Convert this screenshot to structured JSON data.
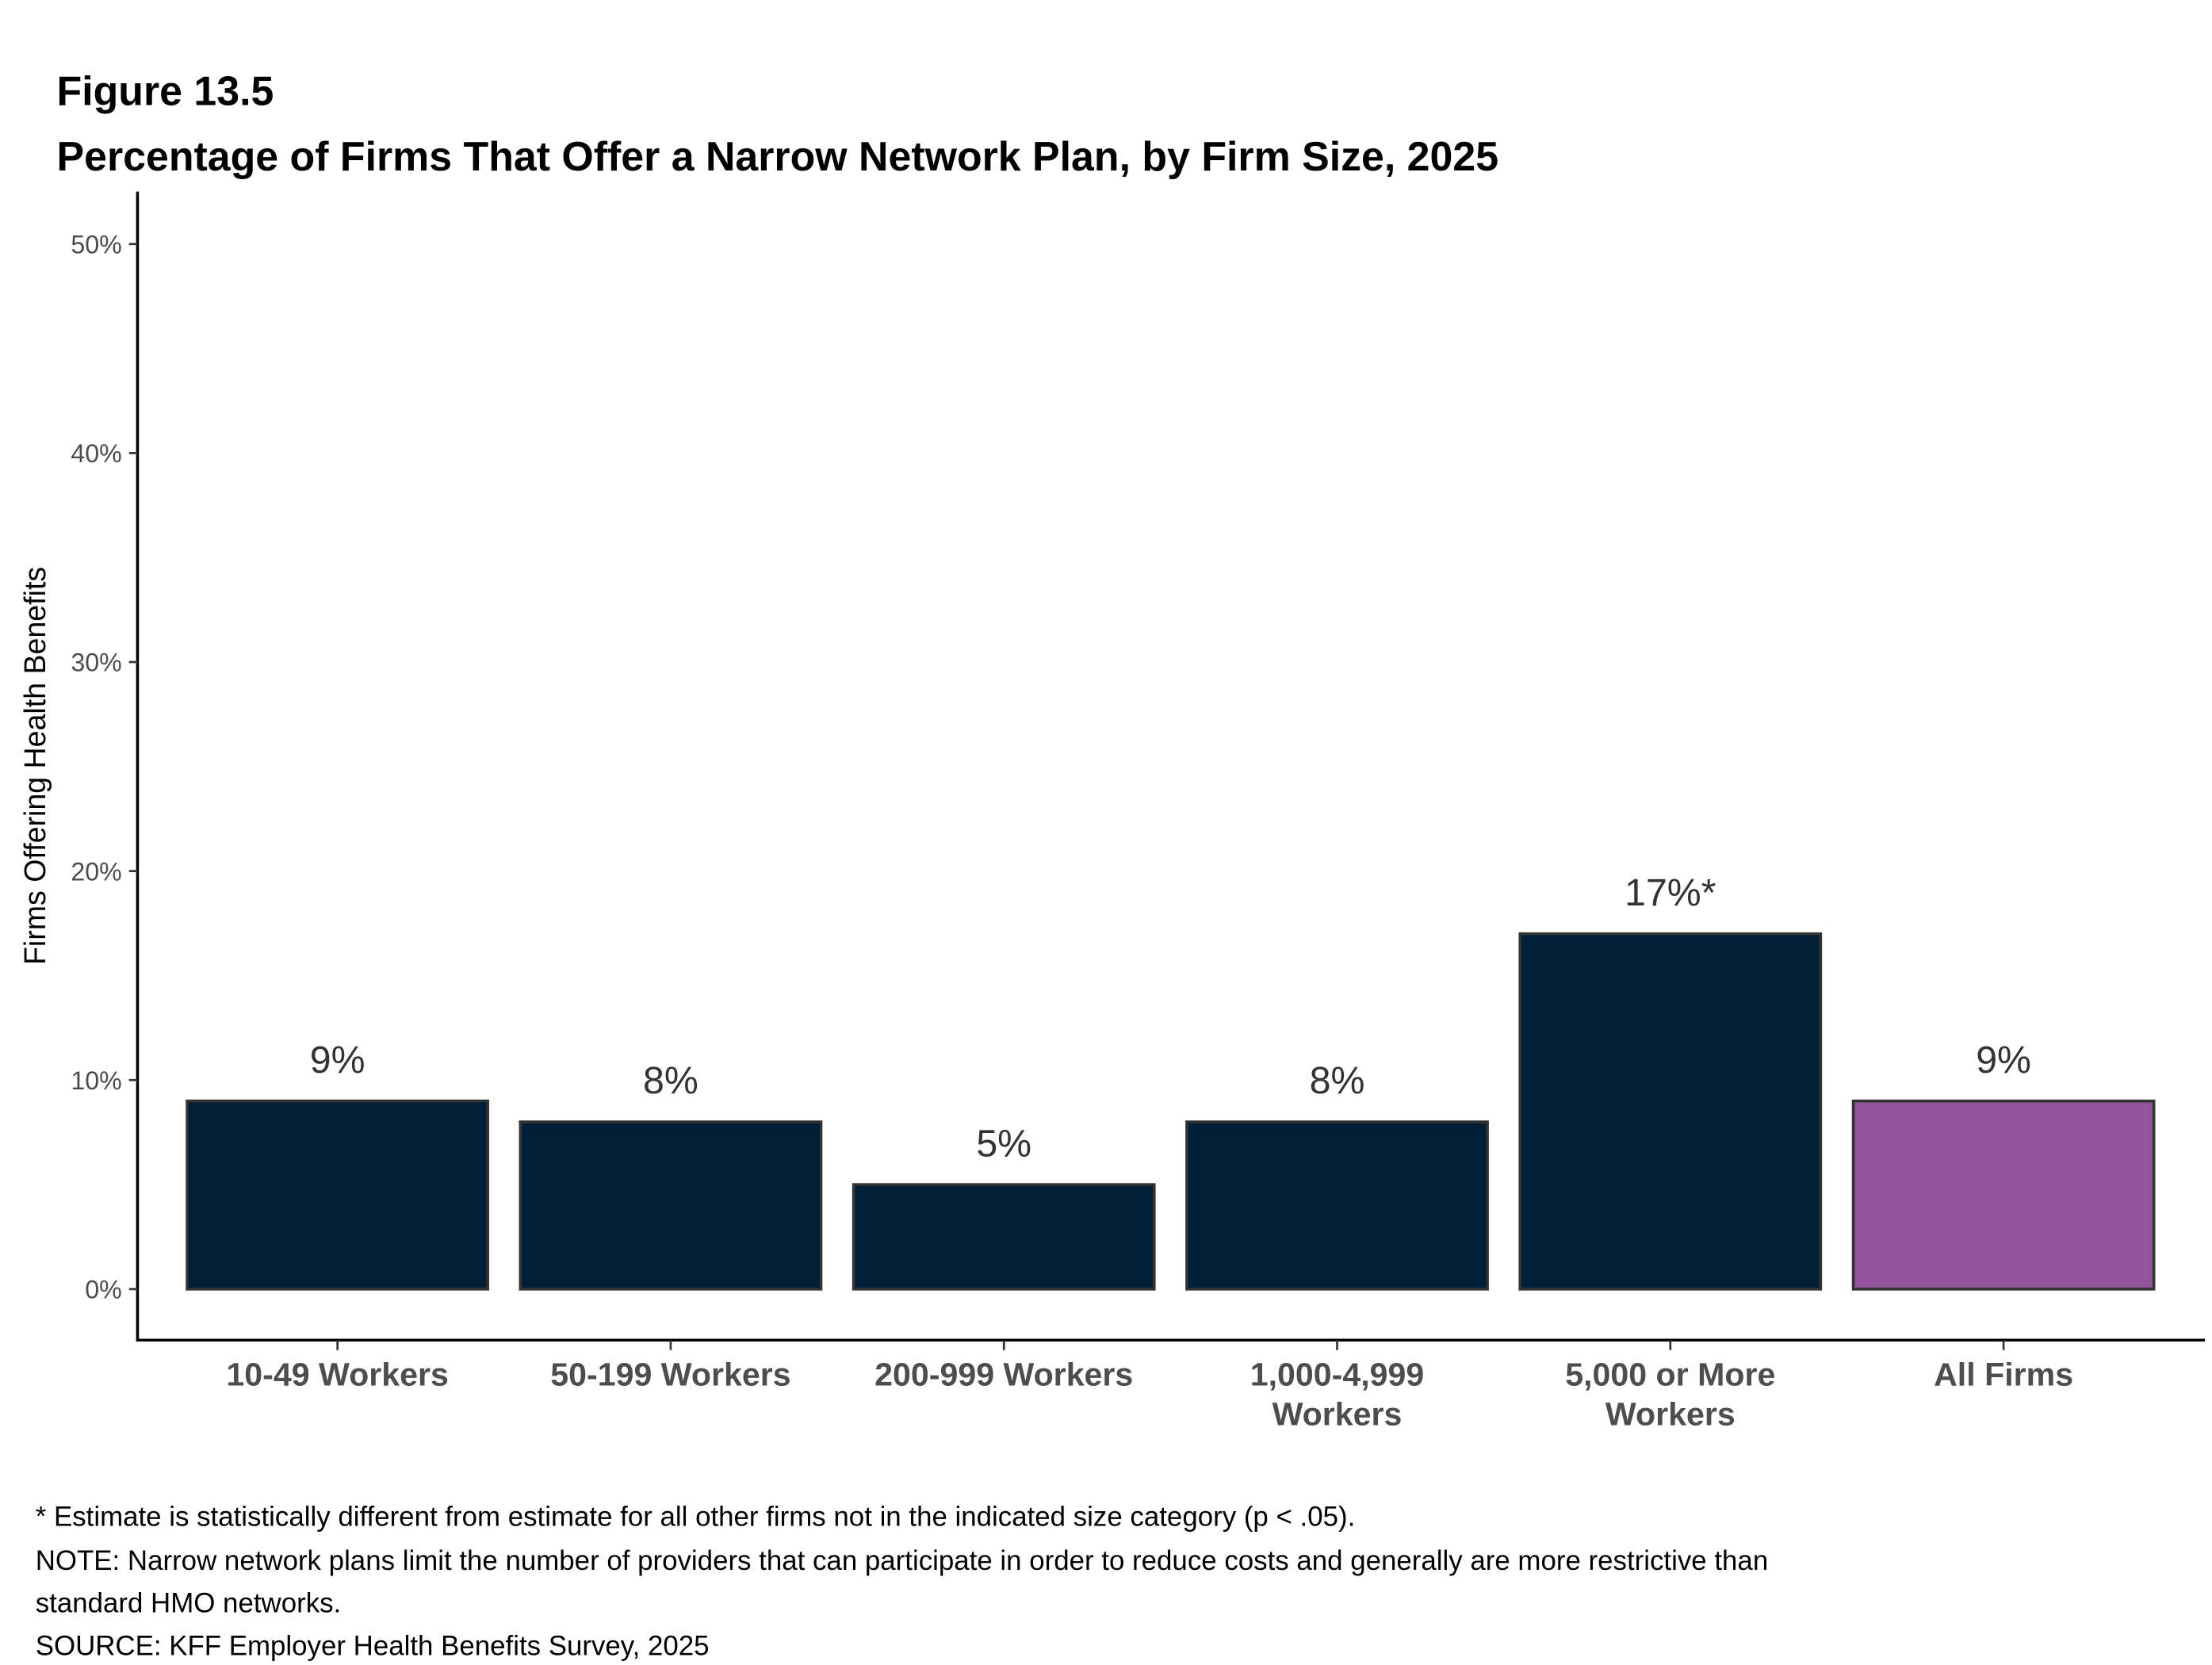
{
  "figure_label": "Figure 13.5",
  "chart_data": {
    "type": "bar",
    "title": "Percentage of Firms That Offer a Narrow Network Plan, by Firm Size, 2025",
    "xlabel": "",
    "ylabel": "Firms Offering Health Benefits",
    "ylim": [
      0,
      50
    ],
    "yticks": [
      "0%",
      "10%",
      "20%",
      "30%",
      "40%",
      "50%"
    ],
    "grid": false,
    "categories": [
      [
        "10-49 Workers"
      ],
      [
        "50-199 Workers"
      ],
      [
        "200-999 Workers"
      ],
      [
        "1,000-4,999",
        "Workers"
      ],
      [
        "5,000 or More",
        "Workers"
      ],
      [
        "All Firms"
      ]
    ],
    "values": [
      9,
      8,
      5,
      8,
      17,
      9
    ],
    "data_labels": [
      "9%",
      "8%",
      "5%",
      "8%",
      "17%*",
      "9%"
    ],
    "colors": [
      "#012038",
      "#012038",
      "#012038",
      "#012038",
      "#012038",
      "#93529d"
    ],
    "bar_outline": "#333333"
  },
  "notes": [
    "* Estimate is statistically different from estimate for all other firms not in the indicated size category (p < .05).",
    "NOTE: Narrow network plans limit the number of providers that can participate in order to reduce costs and generally are more restrictive than",
    "standard HMO networks.",
    "SOURCE: KFF Employer Health Benefits Survey, 2025"
  ]
}
